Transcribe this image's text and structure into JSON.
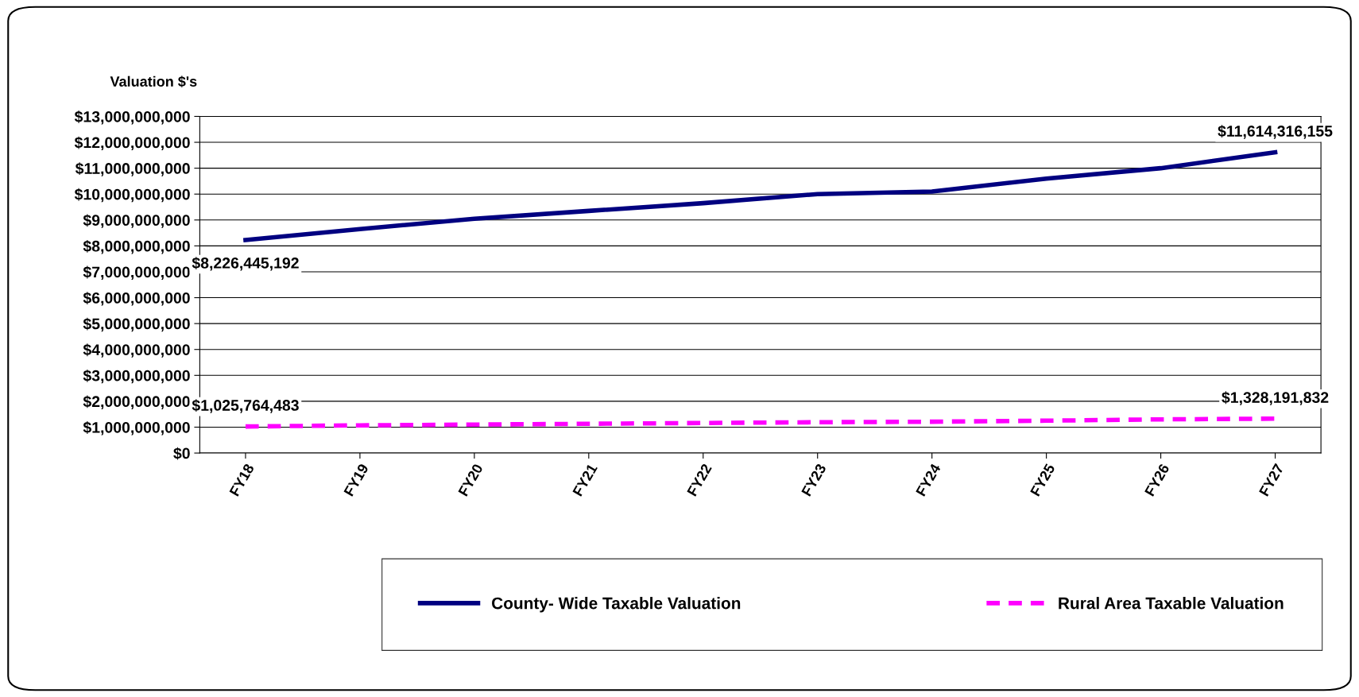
{
  "chart_data": {
    "type": "line",
    "ylabel": "Valuation $'s",
    "categories": [
      "FY18",
      "FY19",
      "FY20",
      "FY21",
      "FY22",
      "FY23",
      "FY24",
      "FY25",
      "FY26",
      "FY27"
    ],
    "series": [
      {
        "name": "County- Wide Taxable Valuation",
        "color": "#000080",
        "line_style": "solid",
        "values": [
          8226445192,
          8650000000,
          9050000000,
          9350000000,
          9650000000,
          10000000000,
          10100000000,
          10600000000,
          11000000000,
          11614316155
        ],
        "value_labels": [
          "$8,226,445,192",
          null,
          null,
          null,
          null,
          null,
          null,
          null,
          null,
          "$11,614,316,155"
        ]
      },
      {
        "name": "Rural Area Taxable Valuation",
        "color": "#ff00ff",
        "line_style": "dashed",
        "values": [
          1025764483,
          1070000000,
          1100000000,
          1130000000,
          1160000000,
          1190000000,
          1210000000,
          1250000000,
          1300000000,
          1328191832
        ],
        "value_labels": [
          "$1,025,764,483",
          null,
          null,
          null,
          null,
          null,
          null,
          null,
          null,
          "$1,328,191,832"
        ]
      }
    ],
    "ylim": [
      0,
      13000000000
    ],
    "yticks": [
      {
        "value": 0,
        "label": "$0"
      },
      {
        "value": 1000000000,
        "label": "$1,000,000,000"
      },
      {
        "value": 2000000000,
        "label": "$2,000,000,000"
      },
      {
        "value": 3000000000,
        "label": "$3,000,000,000"
      },
      {
        "value": 4000000000,
        "label": "$4,000,000,000"
      },
      {
        "value": 5000000000,
        "label": "$5,000,000,000"
      },
      {
        "value": 6000000000,
        "label": "$6,000,000,000"
      },
      {
        "value": 7000000000,
        "label": "$7,000,000,000"
      },
      {
        "value": 8000000000,
        "label": "$8,000,000,000"
      },
      {
        "value": 9000000000,
        "label": "$9,000,000,000"
      },
      {
        "value": 10000000000,
        "label": "$10,000,000,000"
      },
      {
        "value": 11000000000,
        "label": "$11,000,000,000"
      },
      {
        "value": 12000000000,
        "label": "$12,000,000,000"
      },
      {
        "value": 13000000000,
        "label": "$13,000,000,000"
      }
    ],
    "grid": "y",
    "legend": "bottom",
    "marker": "none"
  }
}
